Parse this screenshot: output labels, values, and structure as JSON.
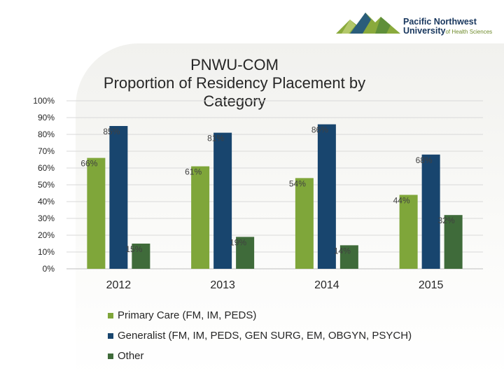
{
  "logo": {
    "line1": "Pacific Northwest",
    "line2": "University",
    "line2_suffix": "of Health Sciences"
  },
  "colors": {
    "primary_care": "#7fa63a",
    "generalist": "#18456e",
    "other": "#3f6b3a"
  },
  "chart_data": {
    "type": "bar",
    "title_lines": [
      "PNWU-COM",
      "Proportion of Residency Placement by",
      "Category"
    ],
    "categories": [
      "2012",
      "2013",
      "2014",
      "2015"
    ],
    "series": [
      {
        "name": "Primary Care (FM, IM, PEDS)",
        "values": [
          66,
          61,
          54,
          44
        ],
        "labels": [
          "66%",
          "61%",
          "54%",
          "44%"
        ],
        "color": "#7fa63a"
      },
      {
        "name": "Generalist (FM, IM, PEDS, GEN SURG, EM, OBGYN, PSYCH)",
        "values": [
          85,
          81,
          86,
          68
        ],
        "labels": [
          "85%",
          "81%",
          "86%",
          "68%"
        ],
        "color": "#18456e"
      },
      {
        "name": "Other",
        "values": [
          15,
          19,
          14,
          32
        ],
        "labels": [
          "15%",
          "19%",
          "14%",
          "32%"
        ],
        "color": "#3f6b3a"
      }
    ],
    "ylim": [
      0,
      100
    ],
    "yticks": [
      "0%",
      "10%",
      "20%",
      "30%",
      "40%",
      "50%",
      "60%",
      "70%",
      "80%",
      "90%",
      "100%"
    ],
    "grid": true,
    "legend_position": "bottom"
  }
}
